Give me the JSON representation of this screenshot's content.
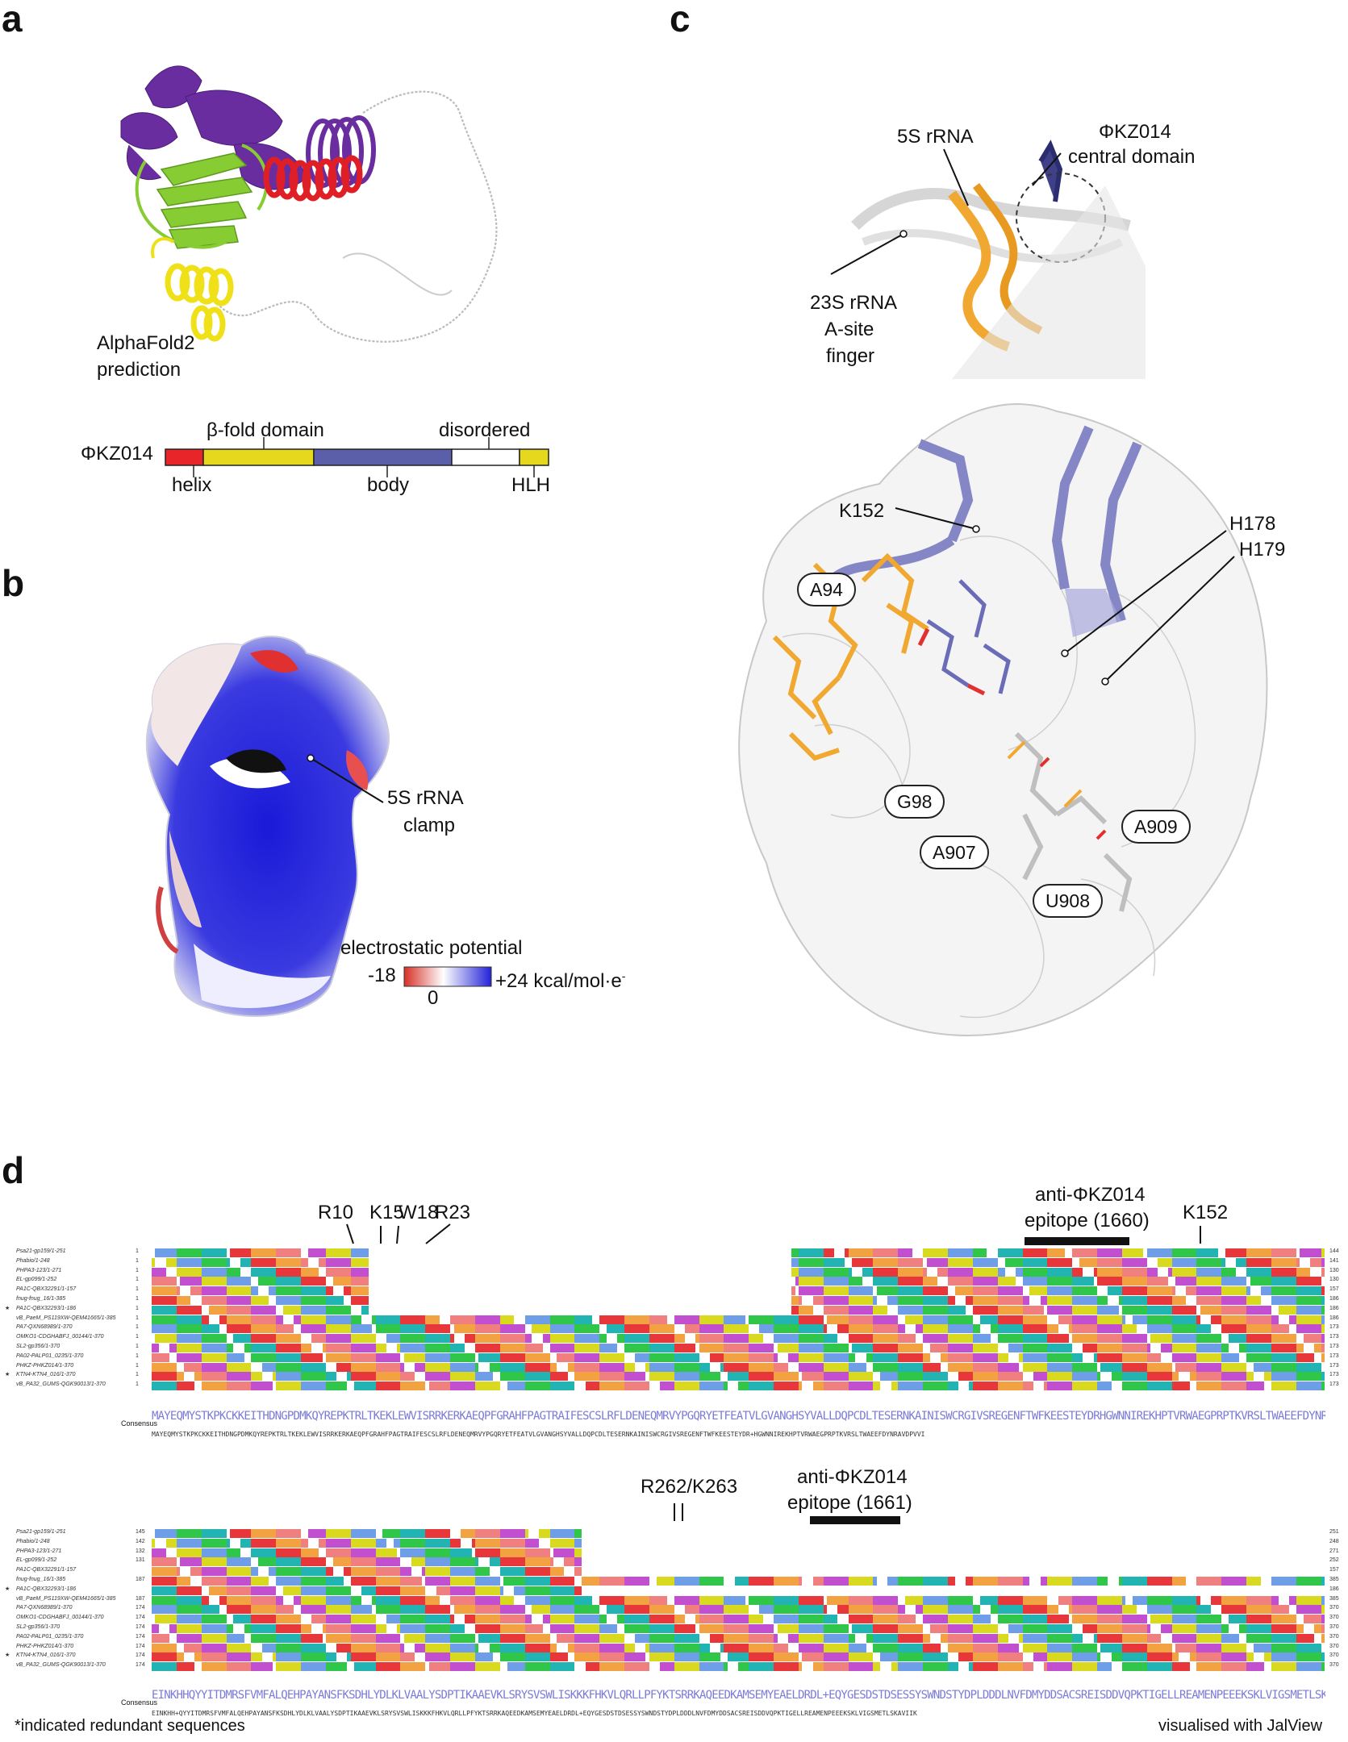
{
  "panels": {
    "a": "a",
    "b": "b",
    "c": "c",
    "d": "d"
  },
  "panel_a": {
    "prediction_label_line1": "AlphaFold2",
    "prediction_label_line2": "prediction",
    "protein": "ΦKZ014",
    "domain_labels": {
      "beta_fold": "β-fold domain",
      "disordered": "disordered",
      "helix": "helix",
      "body": "body",
      "hlh": "HLH"
    },
    "domain_colors": {
      "helix": "#e8262a",
      "beta_fold": "#e6d81c",
      "body": "#5b5ea8",
      "disordered": "#ffffff",
      "hlh": "#e6d81c"
    }
  },
  "panel_b": {
    "clamp_line1": "5S rRNA",
    "clamp_line2": "clamp",
    "legend_title": "electrostatic potential",
    "min_label": "-18",
    "zero_label": "0",
    "max_label": "+24 kcal/mol·e",
    "max_superscript": "-",
    "colors": {
      "neg": "#d73027",
      "neutral": "#ffffff",
      "pos": "#2222d8"
    }
  },
  "panel_c": {
    "label_5s": "5S rRNA",
    "label_central_line1": "ΦKZ014",
    "label_central_line2": "central domain",
    "label_23s_line1": "23S rRNA",
    "label_23s_line2": "A-site",
    "label_23s_line3": "finger",
    "residues": {
      "k152": "K152",
      "h178": "H178",
      "h179": "H179",
      "a94": "A94",
      "g98": "G98",
      "a907": "A907",
      "a909": "A909",
      "u908": "U908"
    },
    "colors": {
      "rna_5s": "#f0a830",
      "protein": "#6a6cb8"
    }
  },
  "panel_d": {
    "block1": {
      "residue_labels": [
        "R10",
        "K15",
        "W18",
        "R23",
        "K152"
      ],
      "epitope_line1": "anti-ΦKZ014",
      "epitope_line2": "epitope (1660)",
      "sequences": [
        {
          "name": "Psa21-gp159/1-251",
          "start": "1",
          "end": "144",
          "star": ""
        },
        {
          "name": "Phabio/1-248",
          "start": "1",
          "end": "141",
          "star": ""
        },
        {
          "name": "PHPA3-123/1-271",
          "start": "1",
          "end": "130",
          "star": ""
        },
        {
          "name": "EL-gp099/1-252",
          "start": "1",
          "end": "130",
          "star": ""
        },
        {
          "name": "PA1C-QBX32291/1-157",
          "start": "1",
          "end": "157",
          "star": ""
        },
        {
          "name": "fnug-fnug_16/1-385",
          "start": "1",
          "end": "186",
          "star": ""
        },
        {
          "name": "PA1C-QBX32293/1-186",
          "start": "1",
          "end": "186",
          "star": "★"
        },
        {
          "name": "vB_PaeM_PS119XW-QEM41665/1-385",
          "start": "1",
          "end": "186",
          "star": ""
        },
        {
          "name": "PA7-QXN68989/1-370",
          "start": "1",
          "end": "173",
          "star": ""
        },
        {
          "name": "OMKO1-CDGHABFJ_00144/1-370",
          "start": "1",
          "end": "173",
          "star": ""
        },
        {
          "name": "SL2-gp356/1-370",
          "start": "1",
          "end": "173",
          "star": ""
        },
        {
          "name": "PA02-PALP01_0235/1-370",
          "start": "1",
          "end": "173",
          "star": ""
        },
        {
          "name": "PHKZ-PHKZ014/1-370",
          "start": "1",
          "end": "173",
          "star": ""
        },
        {
          "name": "KTN4-KTN4_016/1-370",
          "start": "1",
          "end": "173",
          "star": "★"
        },
        {
          "name": "vB_PA32_GUMS-QGK90013/1-370",
          "start": "1",
          "end": "173",
          "star": ""
        }
      ],
      "consensus_label": "Consensus",
      "consensus_logo": "MAYEQMYSTKPKCKKEITHDNGPDMKQYREPKTRLTKEKLEWVISRRKERKAEQPFGRAHFPAGTRAIFESCSLRFLDENEQMRVYPGQRYETFEATVLGVANGHSYVALLDQPCDLTESERNKAINISWCRGIVSREGENFTWFKEESTEYDRHGWNNIREKHPTVRWAEGPRPTKVRSLTWAEEFDYNRAVDPVVI",
      "consensus_seq": "MAYEQMYSTKPKCKKEITHDNGPDMKQYREPKTRLTKEKLEWVISRRKERKAEQPFGRAHFPAGTRAIFESCSLRFLDENEQMRVYPGQRYETFEATVLGVANGHSYVALLDQPCDLTESERNKAINISWCRGIVSREGENFTWFKEESTEYDR+HGWNNIREKHPTVRWAEGPRPTKVRSLTWAEEFDYNRAVDPVVI"
    },
    "block2": {
      "residue_labels": [
        "R262/K263"
      ],
      "epitope_line1": "anti-ΦKZ014",
      "epitope_line2": "epitope (1661)",
      "sequences": [
        {
          "name": "Psa21-gp159/1-251",
          "start": "145",
          "end": "251",
          "star": ""
        },
        {
          "name": "Phabio/1-248",
          "start": "142",
          "end": "248",
          "star": ""
        },
        {
          "name": "PHPA3-123/1-271",
          "start": "132",
          "end": "271",
          "star": ""
        },
        {
          "name": "EL-gp099/1-252",
          "start": "131",
          "end": "252",
          "star": ""
        },
        {
          "name": "PA1C-QBX32291/1-157",
          "start": "",
          "end": "157",
          "star": ""
        },
        {
          "name": "fnug-fnug_16/1-385",
          "start": "187",
          "end": "385",
          "star": ""
        },
        {
          "name": "PA1C-QBX32293/1-186",
          "start": "",
          "end": "186",
          "star": "★"
        },
        {
          "name": "vB_PaeM_PS119XW-QEM41665/1-385",
          "start": "187",
          "end": "385",
          "star": ""
        },
        {
          "name": "PA7-QXN68989/1-370",
          "start": "174",
          "end": "370",
          "star": ""
        },
        {
          "name": "OMKO1-CDGHABFJ_00144/1-370",
          "start": "174",
          "end": "370",
          "star": ""
        },
        {
          "name": "SL2-gp356/1-370",
          "start": "174",
          "end": "370",
          "star": ""
        },
        {
          "name": "PA02-PALP01_0235/1-370",
          "start": "174",
          "end": "370",
          "star": ""
        },
        {
          "name": "PHKZ-PHKZ014/1-370",
          "start": "174",
          "end": "370",
          "star": ""
        },
        {
          "name": "KTN4-KTN4_016/1-370",
          "start": "174",
          "end": "370",
          "star": "★"
        },
        {
          "name": "vB_PA32_GUMS-QGK90013/1-370",
          "start": "174",
          "end": "370",
          "star": ""
        }
      ],
      "consensus_label": "Consensus",
      "consensus_logo": "EINKHHQYYITDMRSFVMFALQEHPAYANSFKSDHLYDLKLVAALYSDPTIKAAEVKLSRYSVSWLISKKKFHKVLQRLLPFYKTSRRKAQEEDKAMSEMYEAELDRDL+EQYGESDSTDSESSYSWNDSTYDPLDDDLNVFDMYDDSACSREISDDVQPKTIGELLREAMENPEEEKSKLVIGSMETLSKAVIIK",
      "consensus_seq": "EINKHH+QYYITDMRSFVMFALQEHPAYANSFKSDHLYDLKLVAALYSDPTIKAAEVKLSRYSVSWLISKKKFHKVLQRLLPFYKTSRRKAQEEDKAMSEMYEAELDRDL+EQYGESDSTDSESSYSWNDSTYDPLDDDLNVFDMYDDSACSREISDDVQPKTIGELLREAMENPEEEKSKLVIGSMETLSKAVIIK"
    },
    "footnote": "*indicated redundant sequences",
    "credit": "visualised with JalView",
    "residue_colors": {
      "hydrophobic": "#6f9ee8",
      "positive": "#e8373a",
      "negative": "#c24fd0",
      "polar": "#2fc64a",
      "glycine": "#f2a241",
      "proline": "#d9d91f",
      "aromatic": "#22b3b3",
      "cysteine": "#f07f80"
    }
  }
}
